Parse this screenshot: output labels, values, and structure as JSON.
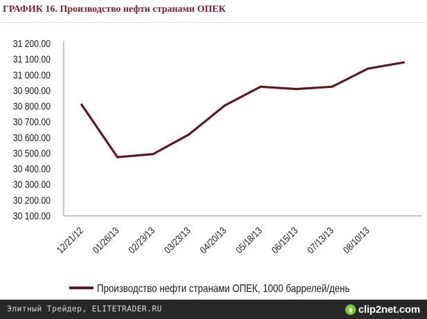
{
  "title": "ГРАФИК 16. Производство нефти странами ОПЕК",
  "footer": {
    "source": "Элитный Трейдер, ELITETRADER.RU",
    "brand": "clip2net.com",
    "brand_icon": "cloud-arrow-icon",
    "brand_color": "#7ec832"
  },
  "colors": {
    "line": "#5a1a1f",
    "axis": "#8c8c8c",
    "title": "#7a1f2b"
  },
  "chart_data": {
    "type": "line",
    "xlabel": "",
    "ylabel": "",
    "grid": false,
    "legend_position": "bottom",
    "ylim": [
      30100,
      31200
    ],
    "y_ticks": [
      "31 200.00",
      "31 100.00",
      "31 000.00",
      "30 900.00",
      "30 800.00",
      "30 700.00",
      "30 600.00",
      "30 500.00",
      "30 400.00",
      "30 300.00",
      "30 200.00",
      "30 100.00"
    ],
    "x_tick_labels": [
      "12/21/12",
      "01/26/13",
      "02/23/13",
      "03/23/13",
      "04/20/13",
      "05/18/13",
      "06/15/13",
      "07/13/13",
      "08/10/13"
    ],
    "series": [
      {
        "name": "Производство нефти странами ОПЕК, 1000 баррелей/день",
        "color": "#5a1a1f",
        "values": [
          30810,
          30475,
          30495,
          30620,
          30805,
          30925,
          30910,
          30925,
          31040,
          31080
        ]
      }
    ]
  }
}
